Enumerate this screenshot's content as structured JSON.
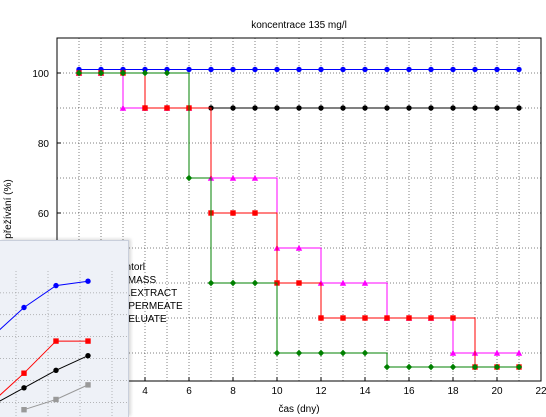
{
  "chart_data": [
    {
      "type": "line",
      "title": "koncentrace 135 mg/l",
      "xlabel": "čas (dny)",
      "ylabel": "přežívání (%)",
      "xlim": [
        0,
        22
      ],
      "ylim": [
        12,
        110
      ],
      "x_ticks": [
        4,
        6,
        8,
        10,
        12,
        14,
        16,
        18,
        20,
        22
      ],
      "y_ticks": [
        20,
        40,
        60,
        80,
        100
      ],
      "grid": true,
      "legend_position": "bottom-left",
      "x": [
        1,
        2,
        3,
        4,
        5,
        6,
        7,
        8,
        9,
        10,
        11,
        12,
        13,
        14,
        15,
        16,
        17,
        18,
        19,
        20,
        21
      ],
      "series": [
        {
          "name": "kontorl",
          "color": "#000000",
          "marker": "circle",
          "values": [
            100,
            100,
            100,
            90,
            90,
            90,
            90,
            90,
            90,
            90,
            90,
            90,
            90,
            90,
            90,
            90,
            90,
            90,
            90,
            90,
            90
          ]
        },
        {
          "name": "BIOMASS",
          "color": "#0000ff",
          "marker": "circle",
          "values": [
            101,
            101,
            101,
            101,
            101,
            101,
            101,
            101,
            101,
            101,
            101,
            101,
            101,
            101,
            101,
            101,
            101,
            101,
            101,
            101,
            101
          ]
        },
        {
          "name": "BIO.EXTRACT",
          "color": "#ff00ff",
          "marker": "triangle",
          "values": [
            100,
            100,
            90,
            90,
            90,
            90,
            70,
            70,
            70,
            50,
            50,
            40,
            40,
            40,
            30,
            30,
            30,
            20,
            20,
            20,
            20
          ]
        },
        {
          "name": "C18 PERMEATE",
          "color": "#ff0000",
          "marker": "square",
          "values": [
            100,
            100,
            100,
            90,
            90,
            90,
            60,
            60,
            60,
            40,
            40,
            30,
            30,
            30,
            30,
            30,
            30,
            30,
            16,
            16,
            16
          ]
        },
        {
          "name": "C18 ELUATE",
          "color": "#008000",
          "marker": "diamond",
          "values": [
            100,
            100,
            100,
            100,
            100,
            70,
            40,
            40,
            40,
            20,
            20,
            20,
            20,
            20,
            16,
            16,
            16,
            16,
            16,
            16,
            16
          ]
        }
      ],
      "legend_labels_visible": [
        "ontorl",
        "OMASS",
        "O.EXTRACT",
        "8 PERMEATE",
        "8 ELUATE"
      ]
    },
    {
      "type": "line",
      "title": "",
      "xlim": [
        0,
        4
      ],
      "ylim": [
        0,
        100
      ],
      "grid": true,
      "x": [
        1,
        2,
        3,
        4
      ],
      "series": [
        {
          "color": "#0000ff",
          "marker": "circle",
          "values": [
            55,
            75,
            90,
            93
          ]
        },
        {
          "color": "#ff0000",
          "marker": "square",
          "values": [
            10,
            30,
            52,
            52
          ]
        },
        {
          "color": "#000000",
          "marker": "circle",
          "values": [
            8,
            20,
            32,
            42
          ]
        },
        {
          "color": "#999999",
          "marker": "square",
          "values": [
            null,
            5,
            12,
            22
          ]
        }
      ]
    }
  ]
}
